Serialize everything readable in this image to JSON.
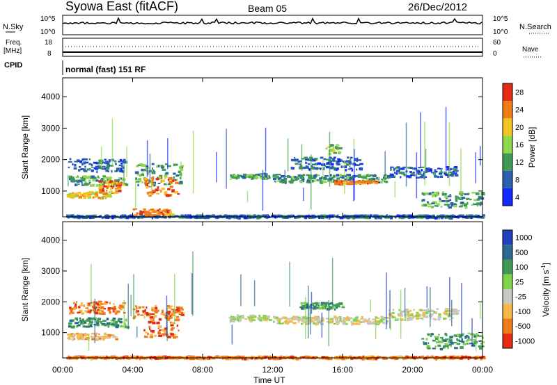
{
  "header": {
    "title": "Syowa East (fitACF)",
    "beam": "Beam 05",
    "date": "26/Dec/2012"
  },
  "top_panels": {
    "nsky_label": "N.Sky",
    "nsky_ticks": [
      "10^5",
      "10^0"
    ],
    "nsearch_label": "N.Search",
    "nsearch_ticks": [
      "10^5",
      "10^0"
    ],
    "freq_label": "Freq.",
    "freq_unit": "[MHz]",
    "freq_ticks": [
      "18",
      "8"
    ],
    "nave_label": "Nave",
    "nave_ticks": [
      "60",
      "0"
    ],
    "cpid_label": "CPID",
    "cpid_text": "normal (fast) 151 RF"
  },
  "chart_data": [
    {
      "type": "heatmap",
      "name": "power",
      "ylabel": "Slant Range [km]",
      "ylim": [
        180,
        4600
      ],
      "yticks": [
        1000,
        2000,
        3000,
        4000
      ],
      "x_range_hours": [
        0,
        24
      ],
      "colorbar": {
        "label": "Power [dB]",
        "levels": [
          4,
          8,
          12,
          16,
          20,
          24,
          28
        ],
        "colors": [
          "#1428ff",
          "#2a5fb0",
          "#3f9a55",
          "#8fd84a",
          "#f4c321",
          "#f07c19",
          "#e22a15"
        ]
      },
      "regions": [
        {
          "t0": 0.2,
          "t1": 24,
          "r0": 180,
          "r1": 260,
          "c": 1
        },
        {
          "t0": 0.3,
          "t1": 3.5,
          "r0": 1650,
          "r1": 2050,
          "c": 1
        },
        {
          "t0": 0.3,
          "t1": 3.6,
          "r0": 1200,
          "r1": 1500,
          "c": 2
        },
        {
          "t0": 0.2,
          "t1": 3.0,
          "r0": 800,
          "r1": 1000,
          "c": 4
        },
        {
          "t0": 2.0,
          "t1": 3.5,
          "r0": 1000,
          "r1": 1350,
          "c": 5
        },
        {
          "t0": 4.0,
          "t1": 6.8,
          "r0": 1200,
          "r1": 1900,
          "c": 2
        },
        {
          "t0": 4.6,
          "t1": 6.6,
          "r0": 850,
          "r1": 1500,
          "c": 5
        },
        {
          "t0": 4.0,
          "t1": 6.2,
          "r0": 250,
          "r1": 450,
          "c": 5
        },
        {
          "t0": 9.5,
          "t1": 11.8,
          "r0": 1400,
          "r1": 1600,
          "c": 2
        },
        {
          "t0": 12.0,
          "t1": 18.5,
          "r0": 1300,
          "r1": 1550,
          "c": 2
        },
        {
          "t0": 15.5,
          "t1": 18.0,
          "r0": 1250,
          "r1": 1350,
          "c": 5
        },
        {
          "t0": 18.5,
          "t1": 22.5,
          "r0": 1450,
          "r1": 1800,
          "c": 1
        },
        {
          "t0": 20.5,
          "t1": 24.0,
          "r0": 500,
          "r1": 1000,
          "c": 2
        },
        {
          "t0": 13.0,
          "t1": 17.0,
          "r0": 1700,
          "r1": 2100,
          "c": 1
        },
        {
          "t0": 15.0,
          "t1": 15.8,
          "r0": 2200,
          "r1": 2500,
          "c": 3
        }
      ]
    },
    {
      "type": "heatmap",
      "name": "velocity",
      "ylabel": "Slant Range [km]",
      "ylim": [
        180,
        4600
      ],
      "yticks": [
        1000,
        2000,
        3000,
        4000
      ],
      "xticks": [
        "00:00",
        "04:00",
        "08:00",
        "12:00",
        "16:00",
        "20:00",
        "00:00"
      ],
      "xlabel": "Time UT",
      "colorbar": {
        "label": "Velocity [m s",
        "label_sup": "-1",
        "label_end": "]",
        "levels": [
          "1000",
          "500",
          "100",
          "25",
          "-25",
          "-100",
          "-500",
          "-1000"
        ],
        "colors": [
          "#1f3fbf",
          "#2a6a8f",
          "#3f9a55",
          "#7fd44a",
          "#c8c8c0",
          "#f7b84a",
          "#f07c19",
          "#e22a15"
        ]
      },
      "regions": [
        {
          "t0": 0.3,
          "t1": 3.5,
          "r0": 1650,
          "r1": 2050,
          "c": 6
        },
        {
          "t0": 0.3,
          "t1": 3.6,
          "r0": 1200,
          "r1": 1500,
          "c": 2
        },
        {
          "t0": 0.2,
          "t1": 3.0,
          "r0": 800,
          "r1": 1000,
          "c": 5
        },
        {
          "t0": 4.6,
          "t1": 6.6,
          "r0": 850,
          "r1": 1500,
          "c": 6
        },
        {
          "t0": 4.0,
          "t1": 6.8,
          "r0": 1500,
          "r1": 1900,
          "c": 6
        },
        {
          "t0": 9.5,
          "t1": 11.8,
          "r0": 1400,
          "r1": 1600,
          "c": 4
        },
        {
          "t0": 12.0,
          "t1": 18.5,
          "r0": 1300,
          "r1": 1550,
          "c": 4
        },
        {
          "t0": 13.5,
          "t1": 16.0,
          "r0": 1800,
          "r1": 2000,
          "c": 2
        },
        {
          "t0": 20.5,
          "t1": 24.0,
          "r0": 500,
          "r1": 1000,
          "c": 2
        },
        {
          "t0": 18.5,
          "t1": 22.5,
          "r0": 1450,
          "r1": 1800,
          "c": 4
        },
        {
          "t0": 0.2,
          "t1": 24,
          "r0": 180,
          "r1": 260,
          "c": 6
        }
      ]
    }
  ]
}
